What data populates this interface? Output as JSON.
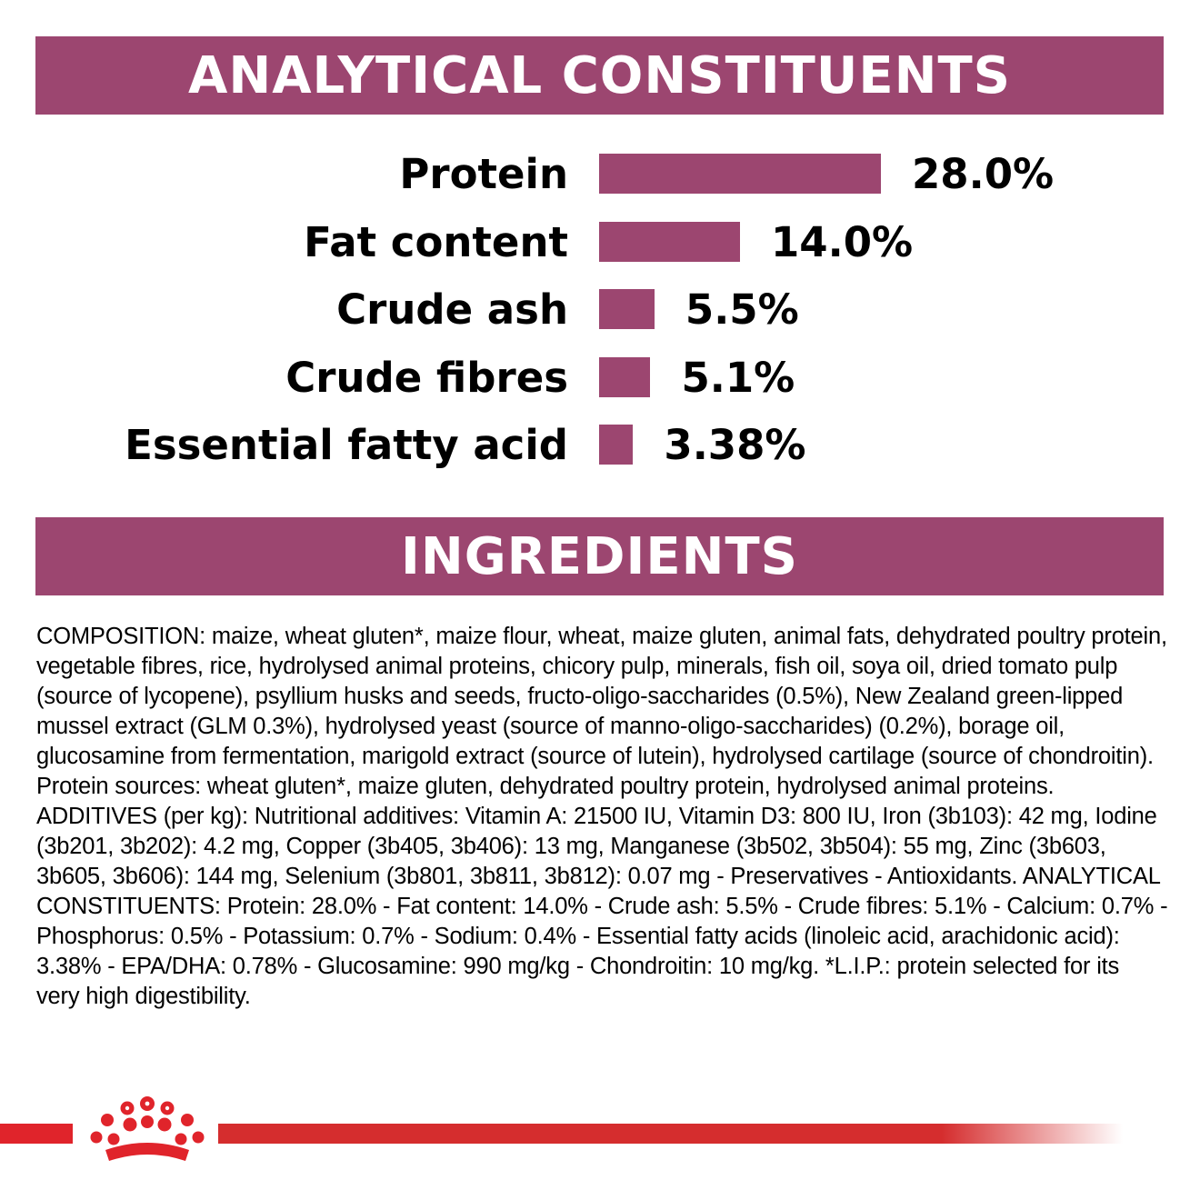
{
  "headers": {
    "analytical": "ANALYTICAL CONSTITUENTS",
    "ingredients": "INGREDIENTS"
  },
  "colors": {
    "banner": "#9c4670",
    "bar": "#9c4670",
    "footer_red": "#d52d2e"
  },
  "chart_data": {
    "type": "bar",
    "orientation": "horizontal",
    "categories": [
      "Protein",
      "Fat content",
      "Crude ash",
      "Crude fibres",
      "Essential fatty acid"
    ],
    "values": [
      28.0,
      14.0,
      5.5,
      5.1,
      3.38
    ],
    "value_labels": [
      "28.0%",
      "14.0%",
      "5.5%",
      "5.1%",
      "3.38%"
    ],
    "unit": "%",
    "title": "ANALYTICAL CONSTITUENTS",
    "xlim": [
      0,
      28.0
    ]
  },
  "ingredients": {
    "text": "COMPOSITION: maize, wheat gluten*, maize flour, wheat, maize gluten, animal fats, dehydrated poultry protein, vegetable fibres, rice, hydrolysed animal proteins, chicory pulp, minerals, fish oil, soya oil, dried tomato pulp (source of lycopene), psyllium husks and seeds, fructo-oligo-saccharides (0.5%), New Zealand green-lipped mussel extract (GLM 0.3%), hydrolysed yeast (source of manno-oligo-saccharides) (0.2%), borage oil, glucosamine from fermentation, marigold extract (source of lutein), hydrolysed cartilage (source of chondroitin). Protein sources: wheat gluten*, maize gluten, dehydrated poultry protein, hydrolysed animal proteins. ADDITIVES (per kg): Nutritional additives: Vitamin A: 21500 IU, Vitamin D3: 800 IU, Iron (3b103): 42 mg, Iodine (3b201, 3b202): 4.2 mg, Copper (3b405, 3b406): 13 mg, Manganese (3b502, 3b504): 55 mg, Zinc (3b603, 3b605, 3b606): 144 mg, Selenium (3b801, 3b811, 3b812): 0.07 mg - Preservatives - Antioxidants. ANALYTICAL CONSTITUENTS: Protein: 28.0% - Fat content: 14.0% - Crude ash: 5.5% - Crude fibres: 5.1% - Calcium: 0.7% - Phosphorus: 0.5% - Potassium: 0.7% - Sodium: 0.4% - Essential fatty acids (linoleic acid, arachidonic acid): 3.38% - EPA/DHA: 0.78% - Glucosamine: 990 mg/kg - Chondroitin: 10 mg/kg. *L.I.P.: protein selected for its very high digestibility."
  },
  "footer": {
    "logo_icon": "crown-icon"
  }
}
